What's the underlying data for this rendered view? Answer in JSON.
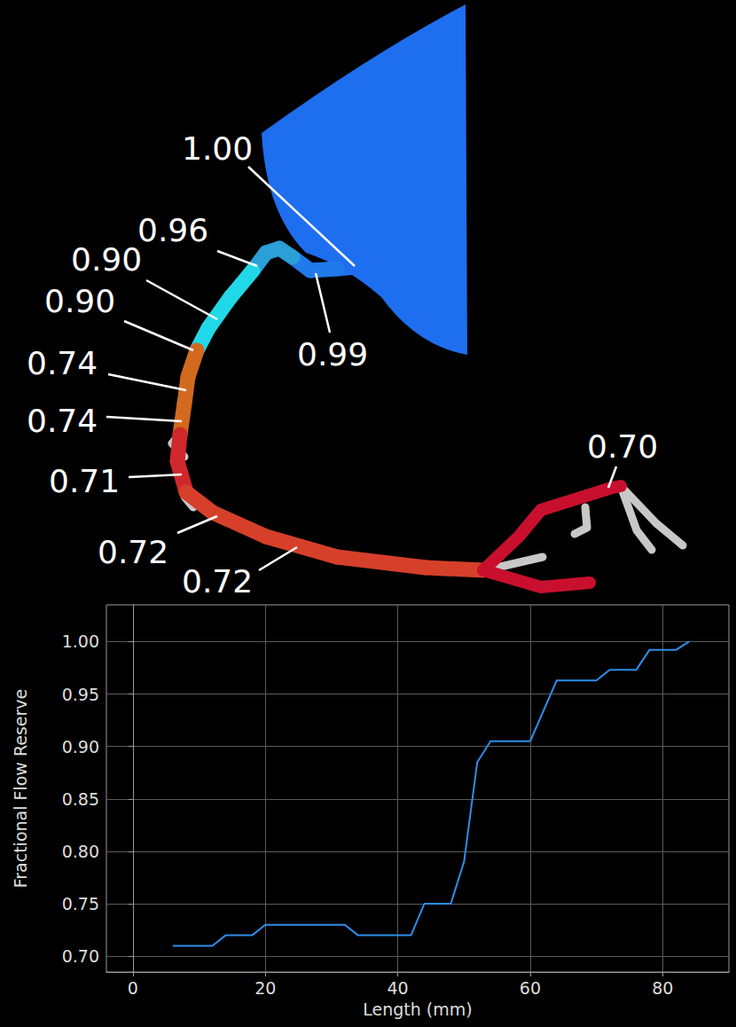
{
  "vessel": {
    "labels": [
      {
        "value": 1.0,
        "label": "1.00"
      },
      {
        "value": 0.99,
        "label": "0.99"
      },
      {
        "value": 0.96,
        "label": "0.96"
      },
      {
        "value": 0.9,
        "label": "0.90"
      },
      {
        "value": 0.9,
        "label": "0.90"
      },
      {
        "value": 0.74,
        "label": "0.74"
      },
      {
        "value": 0.74,
        "label": "0.74"
      },
      {
        "value": 0.71,
        "label": "0.71"
      },
      {
        "value": 0.72,
        "label": "0.72"
      },
      {
        "value": 0.72,
        "label": "0.72"
      },
      {
        "value": 0.7,
        "label": "0.70"
      }
    ]
  },
  "chart_data": {
    "type": "line",
    "x_label": "Length (mm)",
    "y_label": "Fractional Flow Reserve",
    "x": [
      6,
      12,
      14,
      18,
      20,
      32,
      34,
      42,
      44,
      48,
      50,
      52,
      54,
      60,
      64,
      70,
      72,
      76,
      78,
      82,
      84
    ],
    "values": [
      0.71,
      0.71,
      0.72,
      0.72,
      0.73,
      0.73,
      0.72,
      0.72,
      0.75,
      0.75,
      0.79,
      0.885,
      0.905,
      0.905,
      0.963,
      0.963,
      0.973,
      0.973,
      0.992,
      0.992,
      1.0
    ],
    "color": "#2e8ee8",
    "xlim": [
      -4,
      90
    ],
    "xticks": [
      0,
      20,
      40,
      60,
      80
    ],
    "ylim": [
      0.685,
      1.035
    ],
    "yticks": [
      {
        "value": 0.7,
        "label": "0.70"
      },
      {
        "value": 0.75,
        "label": "0.75"
      },
      {
        "value": 0.8,
        "label": "0.80"
      },
      {
        "value": 0.85,
        "label": "0.85"
      },
      {
        "value": 0.9,
        "label": "0.90"
      },
      {
        "value": 0.95,
        "label": "0.95"
      },
      {
        "value": 1.0,
        "label": "1.00"
      }
    ],
    "grid": true
  }
}
